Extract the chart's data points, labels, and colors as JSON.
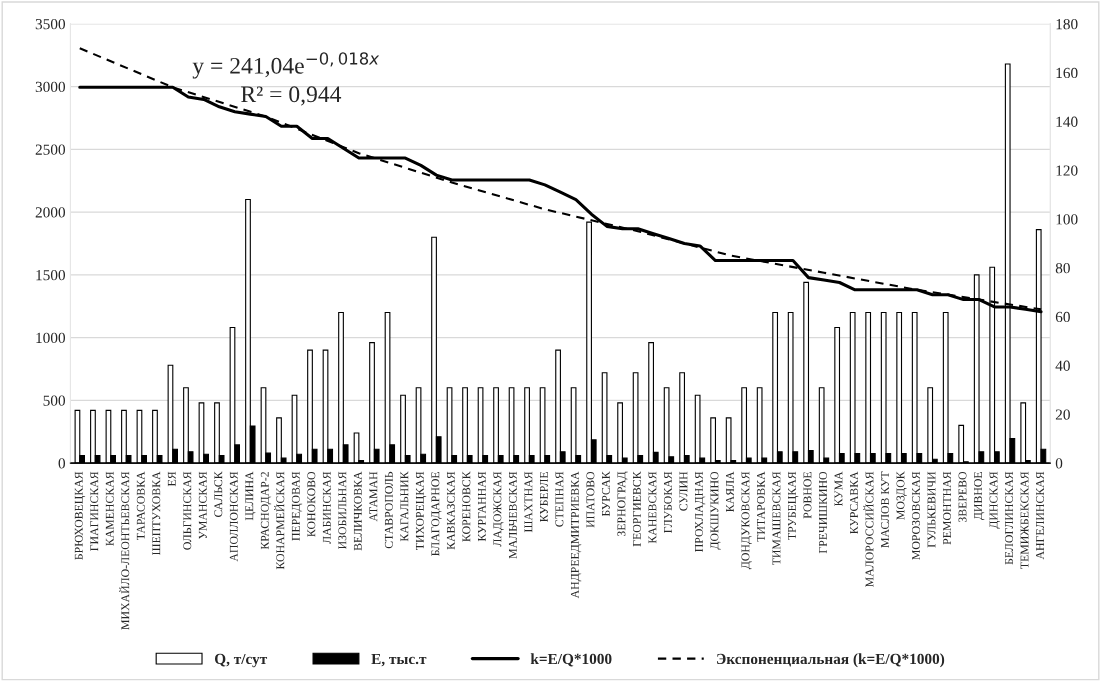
{
  "chart_data": {
    "type": "bar",
    "categories": [
      "БРЮХОВЕЦКАЯ",
      "ГИАГИНСКАЯ",
      "КАМЕНСКАЯ",
      "МИХАЙЛО-ЛЕОНТЬЕВСКАЯ",
      "ТАРАСОВКА",
      "ШЕПТУХОВКА",
      "ЕЯ",
      "ОЛЬГИНСКАЯ",
      "УМАНСКАЯ",
      "САЛЬСК",
      "АПОЛЛОНСКАЯ",
      "ЦЕЛИНА",
      "КРАСНОДАР-2",
      "КОНАРМЕЙСКАЯ",
      "ПЕРЕДОВАЯ",
      "КОНОКОВО",
      "ЛАБИНСКАЯ",
      "ИЗОБИЛЬНАЯ",
      "ВЕЛИЧКОВКА",
      "АТАМАН",
      "СТАВРОПОЛЬ",
      "КАГАЛЬНИК",
      "ТИХОРЕЦКАЯ",
      "БЛАГОДАРНОЕ",
      "КАВКАЗСКАЯ",
      "КОРЕНОВСК",
      "КУРГАННАЯ",
      "ЛАДОЖСКАЯ",
      "МАЛЬЧЕВСКАЯ",
      "ШАХТНАЯ",
      "КУБЕРЛЕ",
      "СТЕПНАЯ",
      "АНДРЕЕДМИТРИЕВКА",
      "ИПАТОВО",
      "БУРСАК",
      "ЗЕРНОГРАД",
      "ГЕОРГИЕВСК",
      "КАНЕВСКАЯ",
      "ГЛУБОКАЯ",
      "СУЛИН",
      "ПРОХЛАДНАЯ",
      "ДОКШУКИНО",
      "КАЯЛА",
      "ДОНДУКОВСКАЯ",
      "ТИТАРОВКА",
      "ТИМАШЕВСКАЯ",
      "ТРУБЕЦКАЯ",
      "РОВНОЕ",
      "ГРЕЧИШКИНО",
      "КУМА",
      "КУРСАВКА",
      "МАЛОРОССИЙСКАЯ",
      "МАСЛОВ КУТ",
      "МОЗДОК",
      "МОРОЗОВСКАЯ",
      "ГУЛЬКЕВИЧИ",
      "РЕМОНТНАЯ",
      "ЗВЕРЕВО",
      "ДИВНОЕ",
      "ДИНСКАЯ",
      "БЕЛОГЛИНСКАЯ",
      "ТЕМИЖБЕКСКАЯ",
      "АНГЕЛИНСКАЯ"
    ],
    "series": [
      {
        "name": "Q, т/сут",
        "color": "#ffffff",
        "values": [
          420,
          420,
          420,
          420,
          420,
          420,
          780,
          600,
          480,
          480,
          1080,
          2100,
          600,
          360,
          540,
          900,
          900,
          1200,
          240,
          960,
          1200,
          540,
          600,
          1800,
          600,
          600,
          600,
          600,
          600,
          600,
          600,
          900,
          600,
          1920,
          720,
          480,
          720,
          960,
          600,
          720,
          540,
          360,
          360,
          600,
          600,
          1200,
          1200,
          1440,
          600,
          1080,
          1200,
          1200,
          1200,
          1200,
          1200,
          600,
          1200,
          300,
          1500,
          1560,
          3180,
          480,
          1860
        ]
      },
      {
        "name": "E, тыс.т",
        "color": "#000000",
        "values": [
          60,
          60,
          60,
          60,
          60,
          60,
          110,
          90,
          70,
          60,
          145,
          295,
          80,
          40,
          70,
          110,
          110,
          145,
          20,
          110,
          145,
          60,
          70,
          210,
          60,
          60,
          60,
          60,
          60,
          60,
          60,
          90,
          60,
          185,
          60,
          40,
          60,
          85,
          50,
          60,
          40,
          20,
          20,
          40,
          40,
          90,
          90,
          100,
          40,
          75,
          75,
          75,
          75,
          75,
          75,
          30,
          75,
          10,
          90,
          90,
          195,
          20,
          110
        ]
      },
      {
        "name": "k=E/Q*1000",
        "type": "line",
        "axis": "y2",
        "color": "#000000",
        "line_style": "solid",
        "values": [
          154,
          154,
          154,
          154,
          154,
          154,
          154,
          150,
          149,
          146,
          144,
          143,
          142,
          138,
          138,
          133,
          133,
          129,
          125,
          125,
          125,
          125,
          122,
          118,
          116,
          116,
          116,
          116,
          116,
          116,
          114,
          111,
          108,
          102,
          97,
          96,
          96,
          94,
          92,
          90,
          89,
          83,
          83,
          83,
          83,
          83,
          83,
          76,
          75,
          74,
          71,
          71,
          71,
          71,
          71,
          69,
          69,
          67,
          67,
          64,
          64,
          63,
          62
        ]
      },
      {
        "name": "Экспоненциальная (k=E/Q*1000)",
        "type": "line",
        "axis": "y2",
        "color": "#000000",
        "line_style": "dashed",
        "values": [
          170,
          null,
          null,
          null,
          null,
          null,
          154,
          null,
          null,
          null,
          null,
          null,
          142,
          null,
          null,
          null,
          null,
          null,
          127,
          null,
          null,
          null,
          null,
          null,
          115,
          null,
          null,
          null,
          null,
          null,
          104,
          null,
          null,
          null,
          null,
          null,
          95,
          null,
          null,
          null,
          null,
          null,
          85,
          null,
          null,
          null,
          null,
          null,
          78,
          null,
          null,
          null,
          null,
          null,
          71,
          null,
          null,
          null,
          null,
          null,
          65,
          null,
          63
        ]
      }
    ],
    "ylim": [
      0,
      3500
    ],
    "yticks": [
      0,
      500,
      1000,
      1500,
      2000,
      2500,
      3000,
      3500
    ],
    "y2lim": [
      0,
      180
    ],
    "y2ticks": [
      0,
      20,
      40,
      60,
      80,
      100,
      120,
      140,
      160,
      180
    ],
    "annotations": [
      "y = 241,04e$^{−0,018x}$",
      "R² = 0,944"
    ],
    "grid": "y",
    "legend": "bottom",
    "marker": "none"
  }
}
